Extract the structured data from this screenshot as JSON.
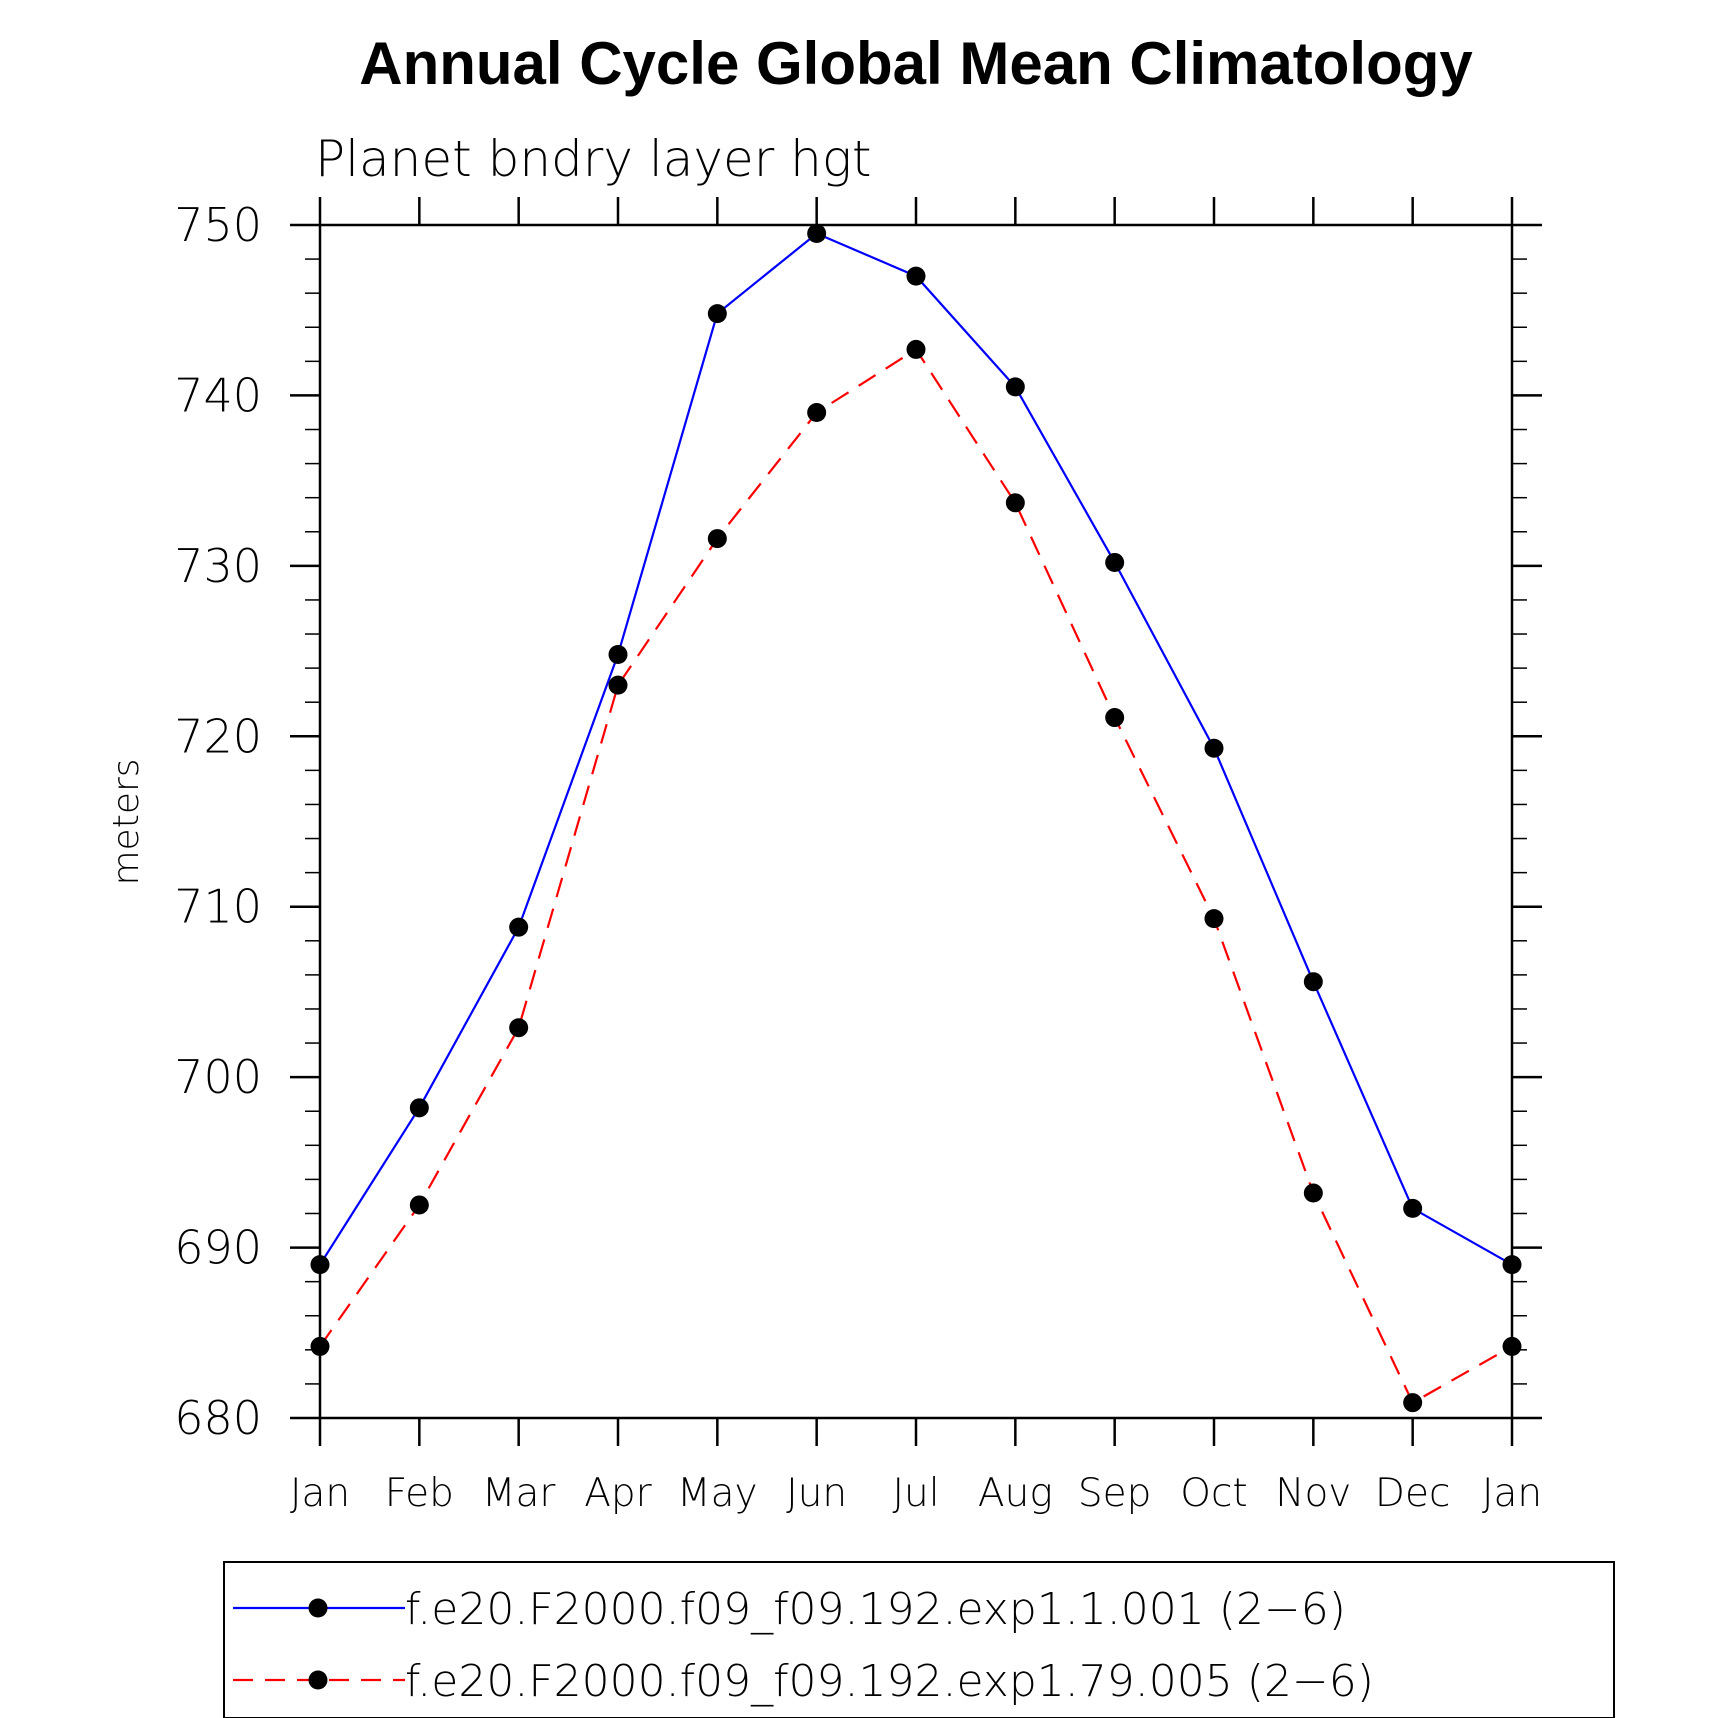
{
  "chart_data": {
    "type": "line",
    "title": "Annual Cycle Global Mean Climatology",
    "subtitle": "Planet bndry layer hgt",
    "xlabel": "",
    "ylabel": "meters",
    "categories": [
      "Jan",
      "Feb",
      "Mar",
      "Apr",
      "May",
      "Jun",
      "Jul",
      "Aug",
      "Sep",
      "Oct",
      "Nov",
      "Dec",
      "Jan"
    ],
    "ylim": [
      680,
      750
    ],
    "yticks": [
      "680",
      "690",
      "700",
      "710",
      "720",
      "730",
      "740",
      "750"
    ],
    "grid": false,
    "legend_position": "bottom",
    "series": [
      {
        "name": "f.e20.F2000.f09_f09.192.exp1.1.001 (2−6)",
        "color": "#0000ff",
        "style": "solid",
        "marker": "filled-circle",
        "values": [
          689.0,
          698.2,
          708.8,
          724.8,
          744.8,
          749.5,
          747.0,
          740.5,
          730.2,
          719.3,
          705.6,
          692.3,
          689.0
        ]
      },
      {
        "name": "f.e20.F2000.f09_f09.192.exp1.79.005 (2−6)",
        "color": "#ff0000",
        "style": "dashed",
        "marker": "filled-circle",
        "values": [
          684.2,
          692.5,
          702.9,
          723.0,
          731.6,
          739.0,
          742.7,
          733.7,
          721.1,
          709.3,
          693.2,
          680.9,
          684.2
        ]
      }
    ]
  }
}
